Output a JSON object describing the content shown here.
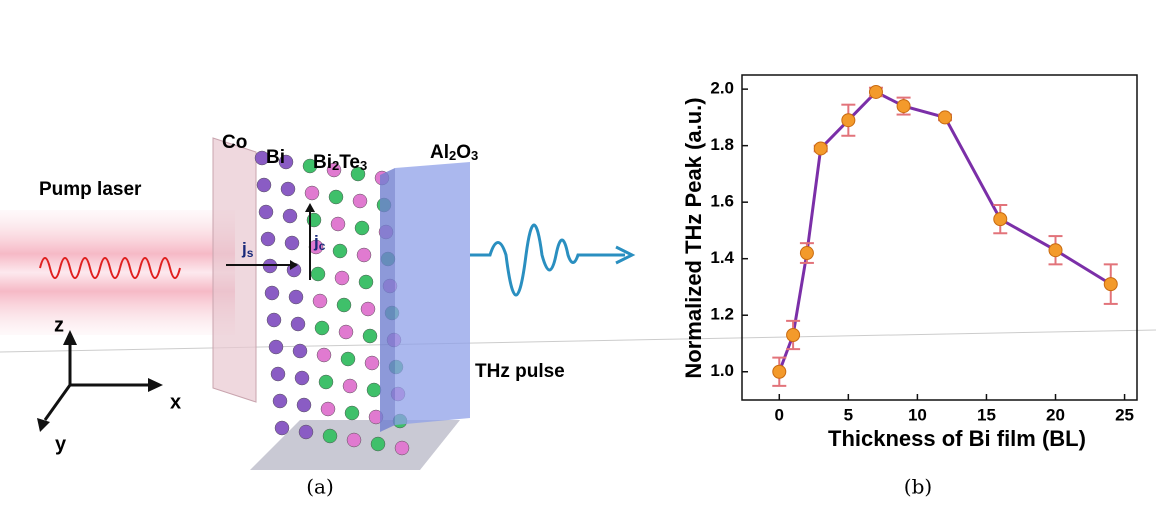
{
  "diagram": {
    "co": "Co",
    "bi": "Bi",
    "bi2te3": [
      "Bi",
      "2",
      "Te",
      "3"
    ],
    "al2o3": [
      "Al",
      "2",
      "O",
      "3"
    ],
    "pump_laser": "Pump laser",
    "js": [
      "j",
      "s"
    ],
    "jc": [
      "j",
      "c"
    ],
    "thz_pulse": "THz pulse",
    "axis_z": "z",
    "axis_x": "x",
    "axis_y": "y"
  },
  "captions": [
    "(a)",
    "(b)"
  ],
  "chart_data": {
    "type": "line",
    "xlabel": "Thickness of Bi film (BL)",
    "ylabel": "Normalized THz Peak (a.u.)",
    "x": [
      0,
      1,
      2,
      3,
      5,
      7,
      9,
      12,
      16,
      20,
      24
    ],
    "series": [
      {
        "color": "#7b2fa8",
        "marker_color": "#f39a2b",
        "error_color": "#e2737a",
        "values": [
          1.0,
          1.13,
          1.42,
          1.79,
          1.89,
          1.99,
          1.94,
          1.9,
          1.54,
          1.43,
          1.31
        ],
        "errors": [
          0.05,
          0.05,
          0.035,
          0.01,
          0.055,
          0.015,
          0.03,
          0.01,
          0.05,
          0.05,
          0.07
        ]
      }
    ],
    "xlim": [
      -2.7,
      25.9
    ],
    "ylim": [
      0.9,
      2.05
    ],
    "xticks": [
      0,
      5,
      10,
      15,
      20,
      25
    ],
    "yticks": [
      {
        "value": 1,
        "label": "1.0"
      },
      {
        "value": 1.2,
        "label": "1.2"
      },
      {
        "value": 1.4,
        "label": "1.4"
      },
      {
        "value": 1.6,
        "label": "1.6"
      },
      {
        "value": 1.8,
        "label": "1.8"
      },
      {
        "value": 2,
        "label": "2.0"
      }
    ]
  }
}
